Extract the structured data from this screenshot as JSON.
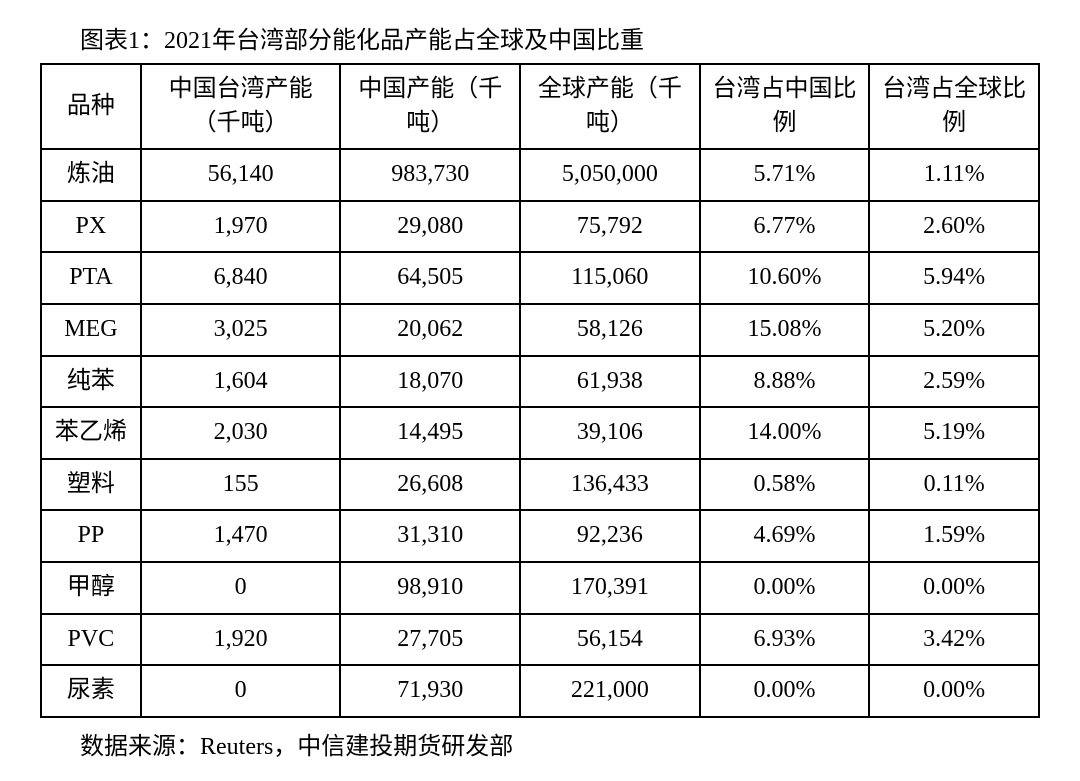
{
  "title": "图表1：2021年台湾部分能化品产能占全球及中国比重",
  "source": "数据来源：Reuters，中信建投期货研发部",
  "table": {
    "type": "table",
    "columns": [
      "品种",
      "中国台湾产能（千吨）",
      "中国产能（千吨）",
      "全球产能（千吨）",
      "台湾占中国比例",
      "台湾占全球比例"
    ],
    "rows": [
      [
        "炼油",
        "56,140",
        "983,730",
        "5,050,000",
        "5.71%",
        "1.11%"
      ],
      [
        "PX",
        "1,970",
        "29,080",
        "75,792",
        "6.77%",
        "2.60%"
      ],
      [
        "PTA",
        "6,840",
        "64,505",
        "115,060",
        "10.60%",
        "5.94%"
      ],
      [
        "MEG",
        "3,025",
        "20,062",
        "58,126",
        "15.08%",
        "5.20%"
      ],
      [
        "纯苯",
        "1,604",
        "18,070",
        "61,938",
        "8.88%",
        "2.59%"
      ],
      [
        "苯乙烯",
        "2,030",
        "14,495",
        "39,106",
        "14.00%",
        "5.19%"
      ],
      [
        "塑料",
        "155",
        "26,608",
        "136,433",
        "0.58%",
        "0.11%"
      ],
      [
        "PP",
        "1,470",
        "31,310",
        "92,236",
        "4.69%",
        "1.59%"
      ],
      [
        "甲醇",
        "0",
        "98,910",
        "170,391",
        "0.00%",
        "0.00%"
      ],
      [
        "PVC",
        "1,920",
        "27,705",
        "56,154",
        "6.93%",
        "3.42%"
      ],
      [
        "尿素",
        "0",
        "71,930",
        "221,000",
        "0.00%",
        "0.00%"
      ]
    ],
    "border_color": "#000000",
    "border_width": 2,
    "background_color": "#ffffff",
    "text_color": "#000000",
    "font_size": 24,
    "cell_align": "center"
  }
}
